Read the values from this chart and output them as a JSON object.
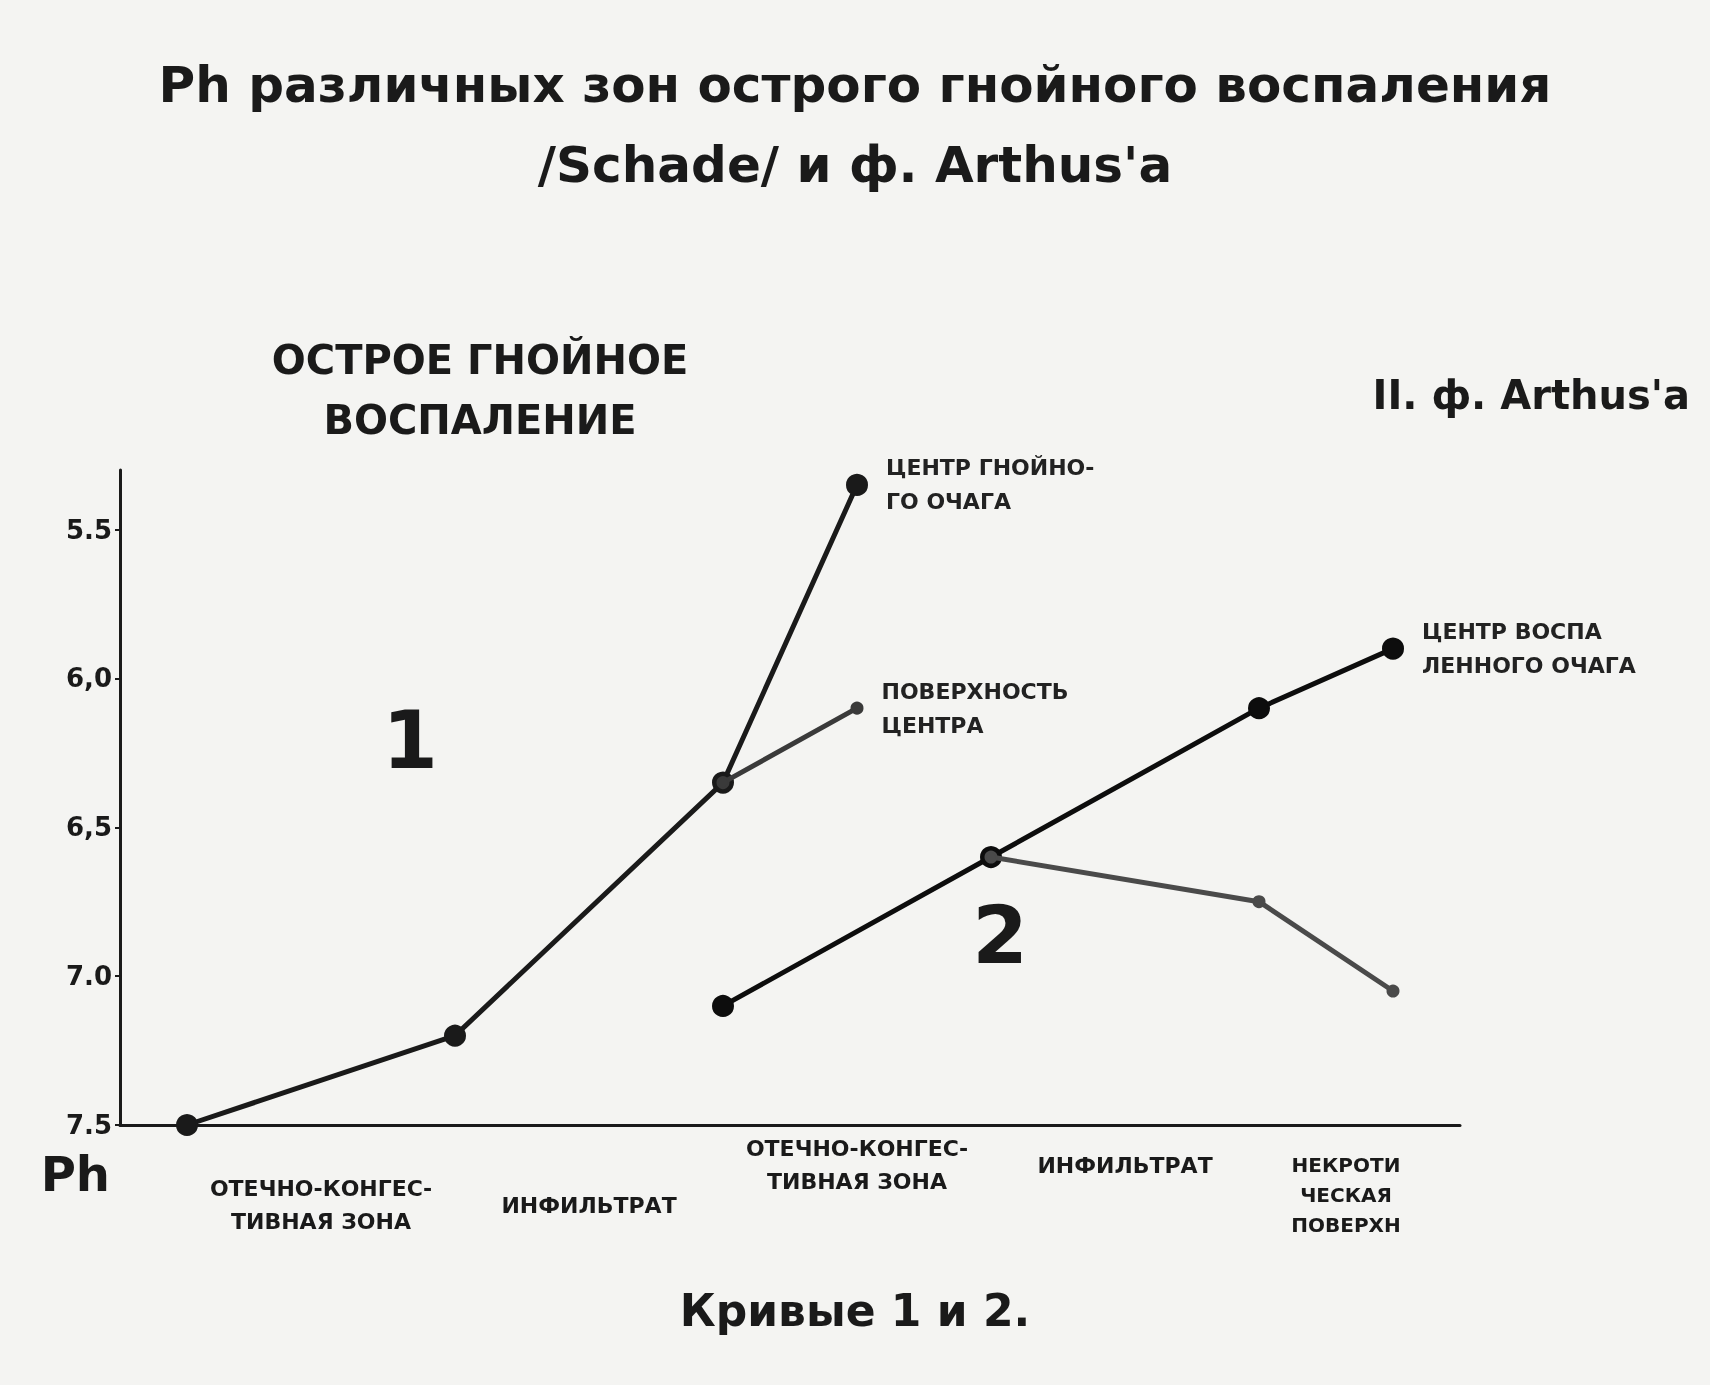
{
  "chart_data": {
    "type": "line",
    "title": "Ph различных зон острого гнойного воспаления\n/Schade/ и ф. Arthus'a",
    "ylabel": "Ph",
    "categories": [
      null,
      null,
      null,
      null,
      null,
      null,
      null,
      null,
      null,
      null
    ],
    "series": [
      {
        "name": "ЦЕНТР ГНОЙНО-\nГО ОЧАГА",
        "color": "#1a1a1a",
        "values": [
          7.5,
          null,
          7.2,
          null,
          6.35,
          5.35,
          null,
          null,
          null,
          null
        ]
      },
      {
        "name": "ПОВЕРХНОСТЬ\nЦЕНТРА",
        "color": "#3a3a3a",
        "values": [
          null,
          null,
          null,
          null,
          6.35,
          6.1,
          null,
          null,
          null,
          null
        ]
      },
      {
        "name": "ЦЕНТР ВОСПА\nЛЕННОГО ОЧАГА",
        "color": "#0d0d0d",
        "values": [
          null,
          null,
          null,
          null,
          7.1,
          null,
          6.6,
          null,
          6.1,
          5.9
        ]
      },
      {
        "color": "#4a4a4a",
        "values": [
          null,
          null,
          null,
          null,
          null,
          null,
          6.6,
          null,
          6.75,
          7.05
        ]
      }
    ],
    "ylim": [
      7.5,
      5.3
    ],
    "yticks": [
      {
        "value": 5.5,
        "label": "5.5"
      },
      {
        "value": 6,
        "label": "6,0"
      },
      {
        "value": 6.5,
        "label": "6,5"
      },
      {
        "value": 7,
        "label": "7.0"
      },
      {
        "value": 7.5,
        "label": "7.5"
      }
    ],
    "grid": false,
    "marker": "circle",
    "line_style": "solid",
    "annotations": [
      "ОСТРОЕ ГНОЙНОЕ\nВОСПАЛЕНИЕ",
      "II. ф. Arthus'a",
      "1",
      "2",
      "ОТЕЧНО-КОНГЕС-\nТИВНАЯ ЗОНА",
      "ИНФИЛЬТРАТ",
      "ОТЕЧНО-КОНГЕС-\nТИВНАЯ ЗОНА",
      "ИНФИЛЬТРАТ",
      "НЕКРОТИ\nЧЕСКАЯ\nПОВЕРХН",
      "Кривые 1 и 2."
    ]
  }
}
